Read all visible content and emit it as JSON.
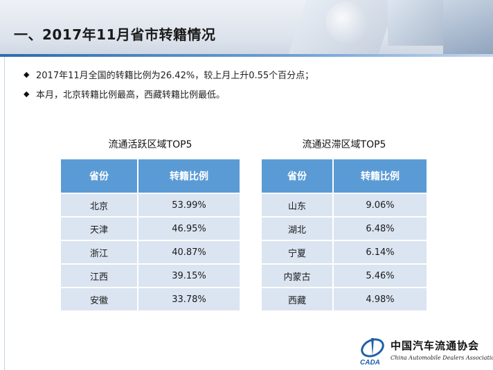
{
  "title": "一、2017年11月省市转籍情况",
  "bullets": [
    "2017年11月全国的转籍比例为26.42%，较上月上升0.55个百分点；",
    "本月，北京转籍比例最高，西藏转籍比例最低。"
  ],
  "bullet_marker": "◆",
  "left_table": {
    "title": "流通活跃区域TOP5",
    "headers": [
      "省份",
      "转籍比例"
    ],
    "rows": [
      [
        "北京",
        "53.99%"
      ],
      [
        "天津",
        "46.95%"
      ],
      [
        "浙江",
        "40.87%"
      ],
      [
        "江西",
        "39.15%"
      ],
      [
        "安徽",
        "33.78%"
      ]
    ]
  },
  "right_table": {
    "title": "流通迟滞区域TOP5",
    "headers": [
      "省份",
      "转籍比例"
    ],
    "rows": [
      [
        "山东",
        "9.06%"
      ],
      [
        "湖北",
        "6.48%"
      ],
      [
        "宁夏",
        "6.14%"
      ],
      [
        "内蒙古",
        "5.46%"
      ],
      [
        "西藏",
        "4.98%"
      ]
    ]
  },
  "logo": {
    "cn": "中国汽车流通协会",
    "abbr": "CADA",
    "en": "China Automobile Dealers Association"
  },
  "colors": {
    "header_bg": "#5b9bd5",
    "row_bg": "#dbe4f1",
    "accent_line": "#2b6cb0"
  }
}
